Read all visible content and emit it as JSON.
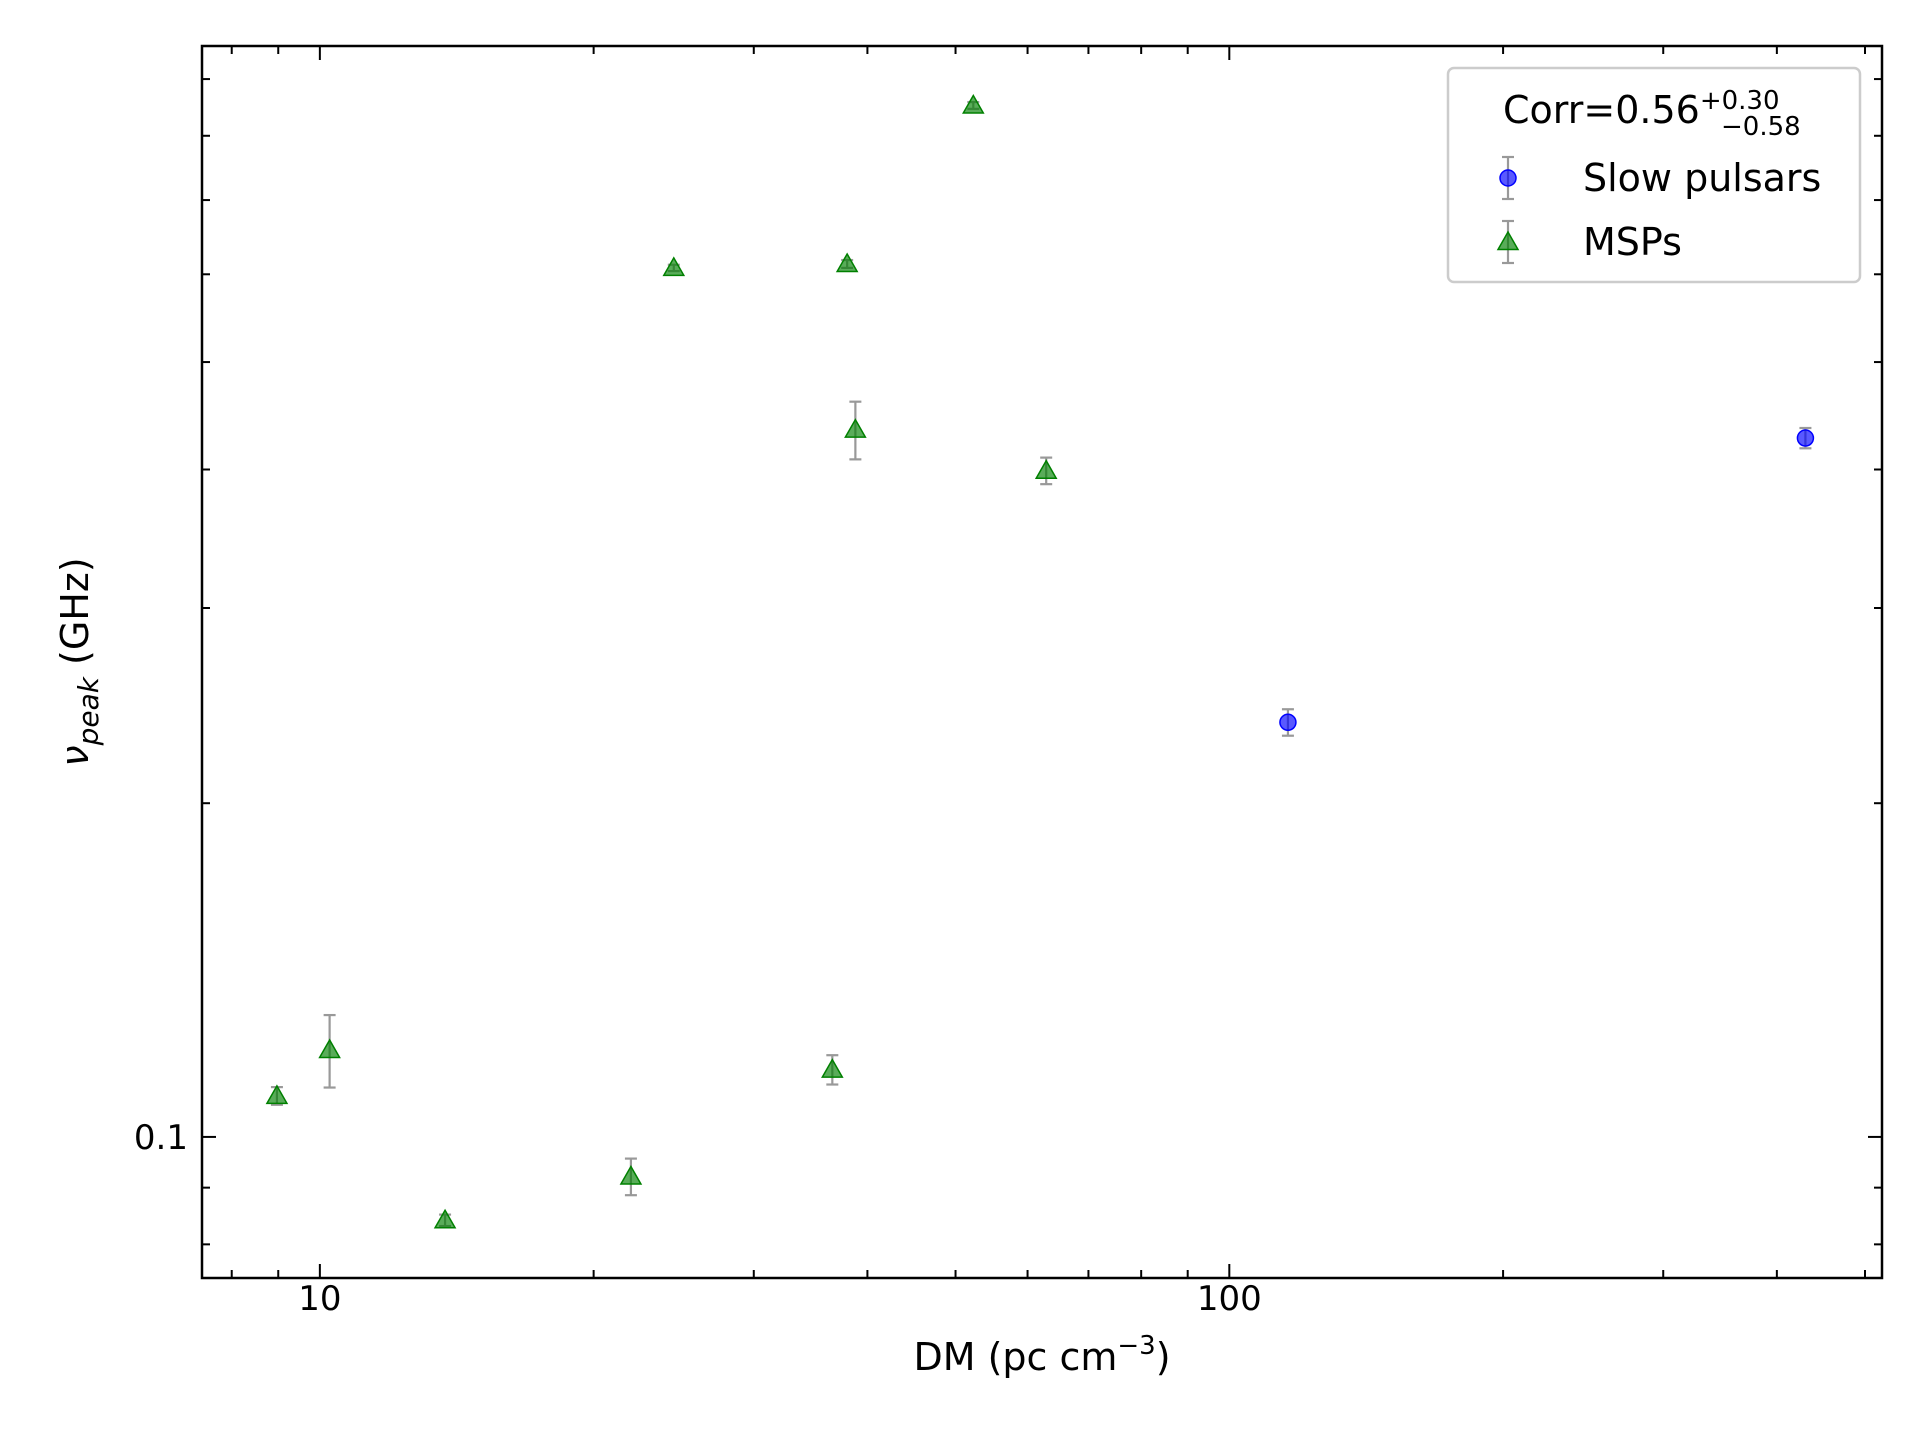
{
  "chart_data": {
    "type": "scatter",
    "xlabel": {
      "text": "DM (pc cm",
      "sup": "−3",
      "end": ")"
    },
    "ylabel": {
      "symbol": "ν",
      "subscript": "peak",
      "unit": " (GHz)"
    },
    "xscale": "log",
    "yscale": "log",
    "xlim": [
      7.42,
      522
    ],
    "ylim": [
      0.0746,
      0.964
    ],
    "xticks": [
      10,
      100
    ],
    "xminorticks": [
      8,
      9,
      20,
      30,
      40,
      50,
      60,
      70,
      80,
      90,
      200,
      300,
      400,
      500
    ],
    "yticks": [
      0.1
    ],
    "yminorticks": [
      0.08,
      0.09,
      0.2,
      0.3,
      0.4,
      0.5,
      0.6,
      0.7,
      0.8,
      0.9
    ],
    "legend_position": "upper right",
    "legend_title": {
      "text": "Corr=0.56",
      "sup": "+0.30",
      "sub": "−0.58"
    },
    "error_color": "#999999",
    "series": [
      {
        "name": "Slow pulsars",
        "color": "#0000ff",
        "marker": "circle",
        "x": [
          116,
          430
        ],
        "values": [
          0.2366,
          0.427
        ],
        "errors": [
          0.0065,
          0.009
        ]
      },
      {
        "name": "MSPs",
        "color": "#008000",
        "marker": "triangle",
        "x": [
          8.97,
          10.25,
          13.73,
          21.98,
          24.5,
          36.6,
          38.0,
          38.8,
          52.3,
          62.9
        ],
        "values": [
          0.1089,
          0.1198,
          0.0841,
          0.0921,
          0.608,
          0.115,
          0.613,
          0.4345,
          0.852,
          0.399
        ],
        "errors": [
          0.002,
          0.009,
          0.001,
          0.0035,
          0.004,
          0.0035,
          0.005,
          0.026,
          0.006,
          0.011
        ]
      }
    ]
  }
}
